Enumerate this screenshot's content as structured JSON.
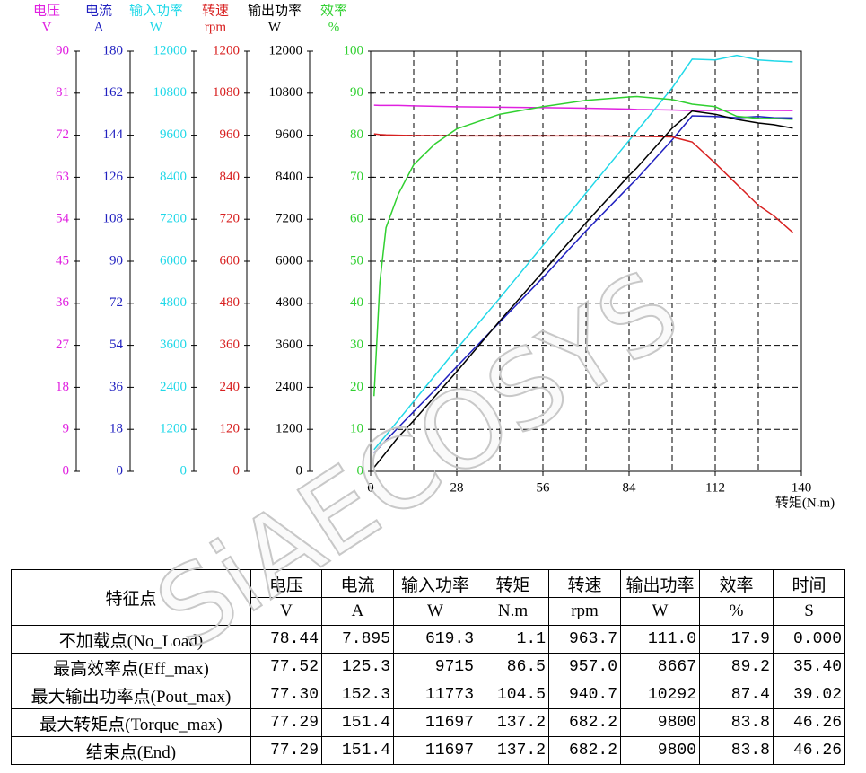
{
  "chart_data": {
    "type": "line",
    "x_label": "转矩(N.m)",
    "xlim": [
      0,
      140
    ],
    "xticks": [
      0,
      28,
      56,
      84,
      112,
      140
    ],
    "xminor_ticks": [
      14,
      42,
      70,
      98,
      126
    ],
    "grid": true,
    "x": [
      1.1,
      3,
      5,
      9,
      14,
      21,
      28,
      42,
      56,
      70,
      84,
      86.5,
      98,
      104.5,
      112,
      119,
      126,
      131,
      137.2
    ],
    "axes": [
      {
        "name": "电压",
        "unit": "V",
        "color": "#e020e0",
        "ylim": [
          0,
          90
        ],
        "yticks": [
          0,
          9,
          18,
          27,
          36,
          45,
          54,
          63,
          72,
          81,
          90
        ]
      },
      {
        "name": "电流",
        "unit": "A",
        "color": "#2020c0",
        "ylim": [
          0,
          180
        ],
        "yticks": [
          0,
          18,
          36,
          54,
          72,
          90,
          108,
          126,
          144,
          162,
          180
        ]
      },
      {
        "name": "输入功率",
        "unit": "W",
        "color": "#20d8e8",
        "ylim": [
          0,
          12000
        ],
        "yticks": [
          0,
          1200,
          2400,
          3600,
          4800,
          6000,
          7200,
          8400,
          9600,
          10800,
          12000
        ]
      },
      {
        "name": "转速",
        "unit": "rpm",
        "color": "#d82020",
        "ylim": [
          0,
          1200
        ],
        "yticks": [
          0,
          120,
          240,
          360,
          480,
          600,
          720,
          840,
          960,
          1080,
          1200
        ]
      },
      {
        "name": "输出功率",
        "unit": "W",
        "color": "#000000",
        "ylim": [
          0,
          12000
        ],
        "yticks": [
          0,
          1200,
          2400,
          3600,
          4800,
          6000,
          7200,
          8400,
          9600,
          10800,
          12000
        ]
      },
      {
        "name": "效率",
        "unit": "%",
        "color": "#30d030",
        "ylim": [
          0,
          100
        ],
        "yticks": [
          0,
          10,
          20,
          30,
          40,
          50,
          60,
          70,
          80,
          90,
          100
        ]
      }
    ],
    "series": [
      {
        "axis": 0,
        "values": [
          78.44,
          78.4,
          78.4,
          78.4,
          78.3,
          78.2,
          78.1,
          78,
          77.9,
          77.8,
          77.6,
          77.52,
          77.4,
          77.3,
          77.3,
          77.3,
          77.3,
          77.3,
          77.29
        ]
      },
      {
        "axis": 1,
        "values": [
          7.895,
          10.5,
          13.3,
          18.8,
          25.6,
          35,
          44.9,
          64,
          83,
          103,
          122,
          125.3,
          142,
          152.3,
          152,
          151.5,
          152,
          151.5,
          151.4
        ]
      },
      {
        "axis": 2,
        "values": [
          619,
          820,
          1030,
          1460,
          2000,
          2750,
          3500,
          4950,
          6450,
          7950,
          9450,
          9715,
          10950,
          11773,
          11750,
          11880,
          11750,
          11720,
          11697
        ]
      },
      {
        "axis": 3,
        "values": [
          963.7,
          962,
          961,
          960,
          959,
          959,
          958,
          958,
          958,
          958,
          957,
          957,
          955,
          940.7,
          880,
          820,
          760,
          730,
          682.2
        ]
      },
      {
        "axis": 4,
        "values": [
          111,
          320,
          540,
          980,
          1450,
          2150,
          2850,
          4300,
          5700,
          7100,
          8450,
          8667,
          9800,
          10292,
          10200,
          10050,
          9950,
          9900,
          9800
        ]
      },
      {
        "axis": 5,
        "values": [
          17.9,
          45,
          58,
          66,
          73,
          78,
          81.5,
          85,
          86.8,
          88.3,
          89.1,
          89.2,
          88.5,
          87.4,
          86.8,
          84.5,
          84,
          84,
          83.8
        ]
      }
    ]
  },
  "watermark": "SiAECOSYS",
  "table": {
    "header": [
      "特征点",
      "电压",
      "电流",
      "输入功率",
      "转矩",
      "转速",
      "输出功率",
      "效率",
      "时间"
    ],
    "units": [
      "V",
      "A",
      "W",
      "N.m",
      "rpm",
      "W",
      "%",
      "S"
    ],
    "rows": [
      [
        "不加载点(No_Load)",
        "78.44",
        "7.895",
        "619.3",
        "1.1",
        "963.7",
        "111.0",
        "17.9",
        "0.000"
      ],
      [
        "最高效率点(Eff_max)",
        "77.52",
        "125.3",
        "9715",
        "86.5",
        "957.0",
        "8667",
        "89.2",
        "35.40"
      ],
      [
        "最大输出功率点(Pout_max)",
        "77.30",
        "152.3",
        "11773",
        "104.5",
        "940.7",
        "10292",
        "87.4",
        "39.02"
      ],
      [
        "最大转矩点(Torque_max)",
        "77.29",
        "151.4",
        "11697",
        "137.2",
        "682.2",
        "9800",
        "83.8",
        "46.26"
      ],
      [
        "结束点(End)",
        "77.29",
        "151.4",
        "11697",
        "137.2",
        "682.2",
        "9800",
        "83.8",
        "46.26"
      ]
    ]
  }
}
